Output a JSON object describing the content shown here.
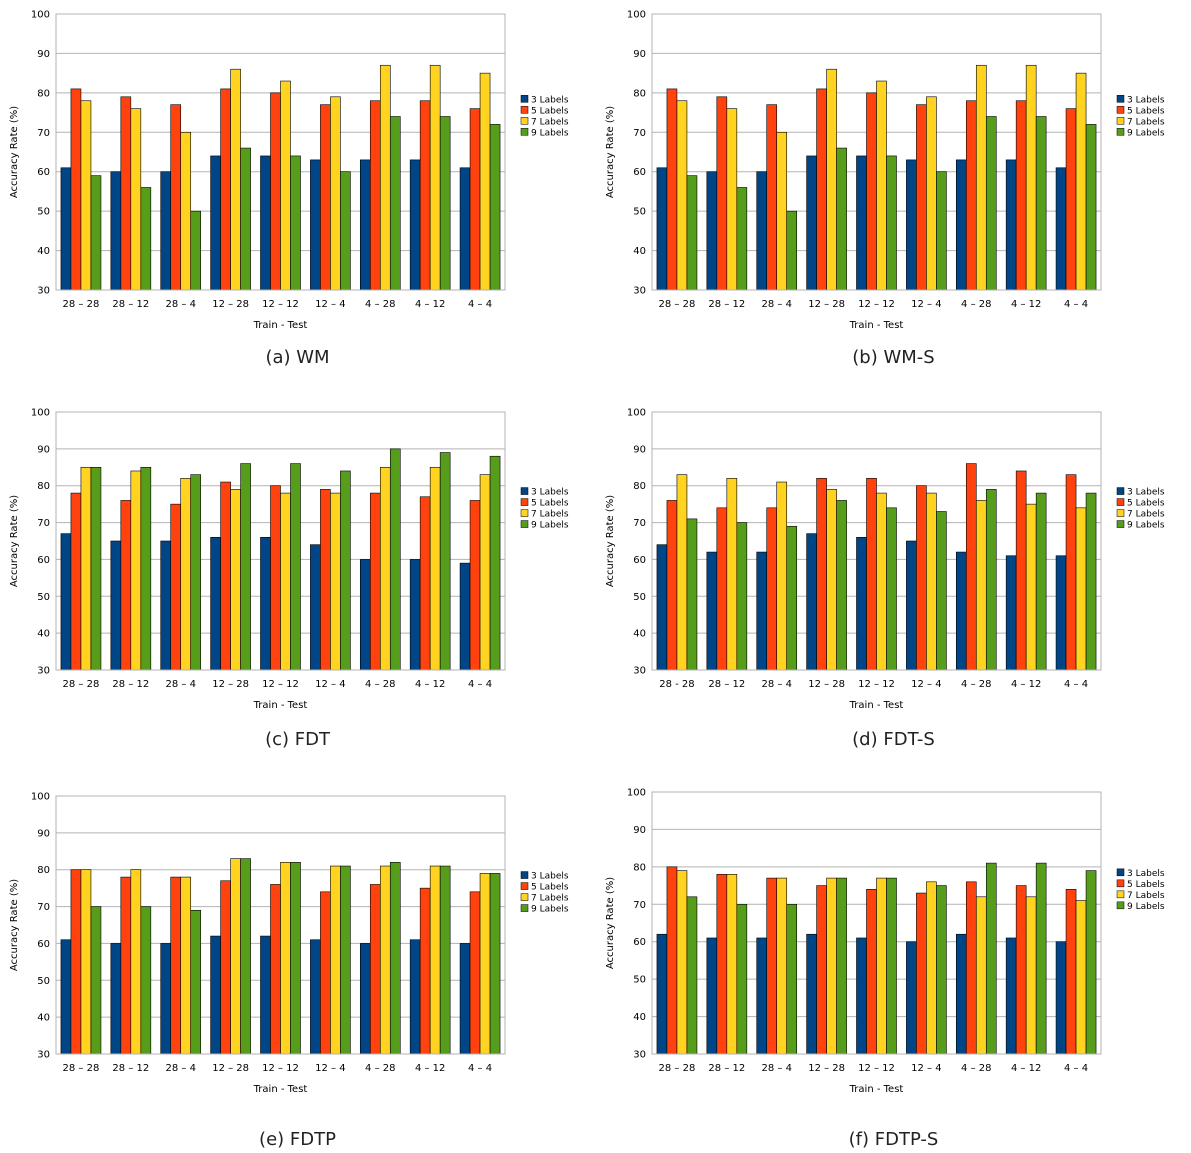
{
  "colors": {
    "3 Labels": "#004586",
    "5 Labels": "#ff420e",
    "7 Labels": "#ffd320",
    "9 Labels": "#579d1c",
    "grid": "#b3b3b3",
    "axis": "#b3b3b3"
  },
  "chart_data": [
    {
      "type": "bar",
      "caption": "(a) WM",
      "xlabel": "Train - Test",
      "ylabel": "Accuracy Rate (%)",
      "ylim": [
        30,
        100
      ],
      "yticks": [
        30,
        40,
        50,
        60,
        70,
        80,
        90,
        100
      ],
      "grid": true,
      "legend": "right",
      "categories": [
        "28 – 28",
        "28 – 12",
        "28 – 4",
        "12 – 28",
        "12 – 12",
        "12 – 4",
        "4 – 28",
        "4 – 12",
        "4 – 4"
      ],
      "series": [
        {
          "name": "3 Labels",
          "values": [
            61,
            60,
            60,
            64,
            64,
            63,
            63,
            63,
            61
          ]
        },
        {
          "name": "5 Labels",
          "values": [
            81,
            79,
            77,
            81,
            80,
            77,
            78,
            78,
            76
          ]
        },
        {
          "name": "7 Labels",
          "values": [
            78,
            76,
            70,
            86,
            83,
            79,
            87,
            87,
            85
          ]
        },
        {
          "name": "9 Labels",
          "values": [
            59,
            56,
            50,
            66,
            64,
            60,
            74,
            74,
            72
          ]
        }
      ]
    },
    {
      "type": "bar",
      "caption": "(b) WM-S",
      "xlabel": "Train - Test",
      "ylabel": "Accuracy Rate (%)",
      "ylim": [
        30,
        100
      ],
      "yticks": [
        30,
        40,
        50,
        60,
        70,
        80,
        90,
        100
      ],
      "grid": true,
      "legend": "right",
      "categories": [
        "28 – 28",
        "28 – 12",
        "28 – 4",
        "12 – 28",
        "12 – 12",
        "12 – 4",
        "4 – 28",
        "4 – 12",
        "4 – 4"
      ],
      "series": [
        {
          "name": "3 Labels",
          "values": [
            61,
            60,
            60,
            64,
            64,
            63,
            63,
            63,
            61
          ]
        },
        {
          "name": "5 Labels",
          "values": [
            81,
            79,
            77,
            81,
            80,
            77,
            78,
            78,
            76
          ]
        },
        {
          "name": "7 Labels",
          "values": [
            78,
            76,
            70,
            86,
            83,
            79,
            87,
            87,
            85
          ]
        },
        {
          "name": "9 Labels",
          "values": [
            59,
            56,
            50,
            66,
            64,
            60,
            74,
            74,
            72
          ]
        }
      ]
    },
    {
      "type": "bar",
      "caption": "(c) FDT",
      "xlabel": "Train - Test",
      "ylabel": "Accuracy Rate (%)",
      "ylim": [
        30,
        100
      ],
      "yticks": [
        30,
        40,
        50,
        60,
        70,
        80,
        90,
        100
      ],
      "grid": true,
      "legend": "right",
      "categories": [
        "28 – 28",
        "28 – 12",
        "28 – 4",
        "12 – 28",
        "12 – 12",
        "12 – 4",
        "4 – 28",
        "4 – 12",
        "4 – 4"
      ],
      "series": [
        {
          "name": "3 Labels",
          "values": [
            67,
            65,
            65,
            66,
            66,
            64,
            60,
            60,
            59
          ]
        },
        {
          "name": "5 Labels",
          "values": [
            78,
            76,
            75,
            81,
            80,
            79,
            78,
            77,
            76
          ]
        },
        {
          "name": "7 Labels",
          "values": [
            85,
            84,
            82,
            79,
            78,
            78,
            85,
            85,
            83
          ]
        },
        {
          "name": "9 Labels",
          "values": [
            85,
            85,
            83,
            86,
            86,
            84,
            90,
            89,
            88
          ]
        }
      ]
    },
    {
      "type": "bar",
      "caption": "(d) FDT-S",
      "xlabel": "Train - Test",
      "ylabel": "Accuracy Rate (%)",
      "ylim": [
        30,
        100
      ],
      "yticks": [
        30,
        40,
        50,
        60,
        70,
        80,
        90,
        100
      ],
      "grid": true,
      "legend": "right",
      "categories": [
        "28 - 28",
        "28 – 12",
        "28 – 4",
        "12 – 28",
        "12 – 12",
        "12 – 4",
        "4 – 28",
        "4 – 12",
        "4 – 4"
      ],
      "series": [
        {
          "name": "3 Labels",
          "values": [
            64,
            62,
            62,
            67,
            66,
            65,
            62,
            61,
            61
          ]
        },
        {
          "name": "5 Labels",
          "values": [
            76,
            74,
            74,
            82,
            82,
            80,
            86,
            84,
            83
          ]
        },
        {
          "name": "7 Labels",
          "values": [
            83,
            82,
            81,
            79,
            78,
            78,
            76,
            75,
            74
          ]
        },
        {
          "name": "9 Labels",
          "values": [
            71,
            70,
            69,
            76,
            74,
            73,
            79,
            78,
            78
          ]
        }
      ]
    },
    {
      "type": "bar",
      "caption": "(e) FDTP",
      "xlabel": "Train - Test",
      "ylabel": "Accuracy Rate (%)",
      "ylim": [
        30,
        100
      ],
      "yticks": [
        30,
        40,
        50,
        60,
        70,
        80,
        90,
        100
      ],
      "grid": true,
      "legend": "right",
      "categories": [
        "28 – 28",
        "28 – 12",
        "28 – 4",
        "12 – 28",
        "12 – 12",
        "12 – 4",
        "4 – 28",
        "4 – 12",
        "4 – 4"
      ],
      "series": [
        {
          "name": "3 Labels",
          "values": [
            61,
            60,
            60,
            62,
            62,
            61,
            60,
            61,
            60
          ]
        },
        {
          "name": "5 Labels",
          "values": [
            80,
            78,
            78,
            77,
            76,
            74,
            76,
            75,
            74
          ]
        },
        {
          "name": "7 Labels",
          "values": [
            80,
            80,
            78,
            83,
            82,
            81,
            81,
            81,
            79
          ]
        },
        {
          "name": "9 Labels",
          "values": [
            70,
            70,
            69,
            83,
            82,
            81,
            82,
            81,
            79
          ]
        }
      ]
    },
    {
      "type": "bar",
      "caption": "(f) FDTP-S",
      "xlabel": "Train - Test",
      "ylabel": "Accuracy Rate (%)",
      "ylim": [
        30,
        100
      ],
      "yticks": [
        30,
        40,
        50,
        60,
        70,
        80,
        90,
        100
      ],
      "grid": true,
      "legend": "right",
      "categories": [
        "28 – 28",
        "28 – 12",
        "28 – 4",
        "12 – 28",
        "12 – 12",
        "12 – 4",
        "4 – 28",
        "4 – 12",
        "4 – 4"
      ],
      "series": [
        {
          "name": "3 Labels",
          "values": [
            62,
            61,
            61,
            62,
            61,
            60,
            62,
            61,
            60
          ]
        },
        {
          "name": "5 Labels",
          "values": [
            80,
            78,
            77,
            75,
            74,
            73,
            76,
            75,
            74
          ]
        },
        {
          "name": "7 Labels",
          "values": [
            79,
            78,
            77,
            77,
            77,
            76,
            72,
            72,
            71
          ]
        },
        {
          "name": "9 Labels",
          "values": [
            72,
            70,
            70,
            77,
            77,
            75,
            81,
            81,
            79
          ]
        }
      ]
    }
  ]
}
